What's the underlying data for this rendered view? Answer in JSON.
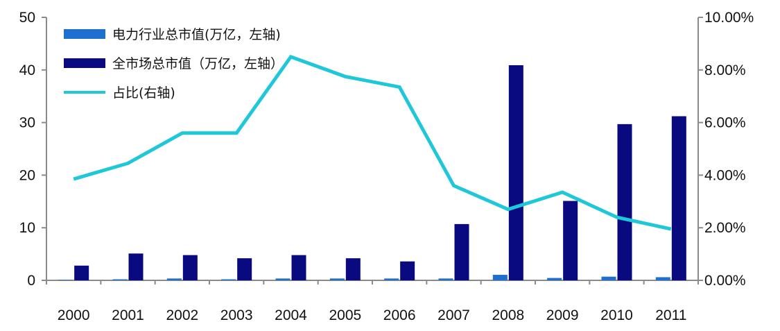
{
  "chart_data": {
    "type": "bar",
    "categories": [
      "2000",
      "2001",
      "2002",
      "2003",
      "2004",
      "2005",
      "2006",
      "2007",
      "2008",
      "2009",
      "2010",
      "2011"
    ],
    "series": [
      {
        "name": "电力行业总市值(万亿，左轴)",
        "kind": "bar",
        "axis": "left",
        "color": "#1F6FD1",
        "values": [
          0.1,
          0.2,
          0.35,
          0.2,
          0.35,
          0.35,
          0.35,
          0.35,
          1.05,
          0.45,
          0.7,
          0.6
        ]
      },
      {
        "name": "全市场总市值（万亿，左轴）",
        "kind": "bar",
        "axis": "left",
        "color": "#0A0A80",
        "values": [
          2.8,
          5.1,
          4.8,
          4.2,
          4.8,
          4.2,
          3.6,
          10.7,
          40.9,
          15.1,
          29.7,
          31.2
        ]
      },
      {
        "name": "占比(右轴)",
        "kind": "line",
        "axis": "right",
        "color": "#1FC8D8",
        "values": [
          3.85,
          4.45,
          5.6,
          5.6,
          8.5,
          7.75,
          7.35,
          3.6,
          2.7,
          3.35,
          2.4,
          1.95
        ]
      }
    ],
    "y_left": {
      "min": 0,
      "max": 50,
      "ticks": [
        0,
        10,
        20,
        30,
        40,
        50
      ],
      "tick_labels": [
        "0",
        "10",
        "20",
        "30",
        "40",
        "50"
      ]
    },
    "y_right": {
      "min": 0,
      "max": 10,
      "ticks": [
        0,
        2,
        4,
        6,
        8,
        10
      ],
      "tick_labels": [
        "0.00%",
        "2.00%",
        "4.00%",
        "6.00%",
        "8.00%",
        "10.00%"
      ]
    },
    "legend": {
      "position": "top-left",
      "entries": [
        {
          "label": "电力行业总市值(万亿，左轴)",
          "swatch": "bar",
          "color": "#1F6FD1"
        },
        {
          "label": "全市场总市值（万亿，左轴）",
          "swatch": "bar",
          "color": "#0A0A80"
        },
        {
          "label": "占比(右轴)",
          "swatch": "line",
          "color": "#1FC8D8"
        }
      ]
    },
    "grid": false,
    "title": "",
    "xlabel": "",
    "ylabel": ""
  }
}
